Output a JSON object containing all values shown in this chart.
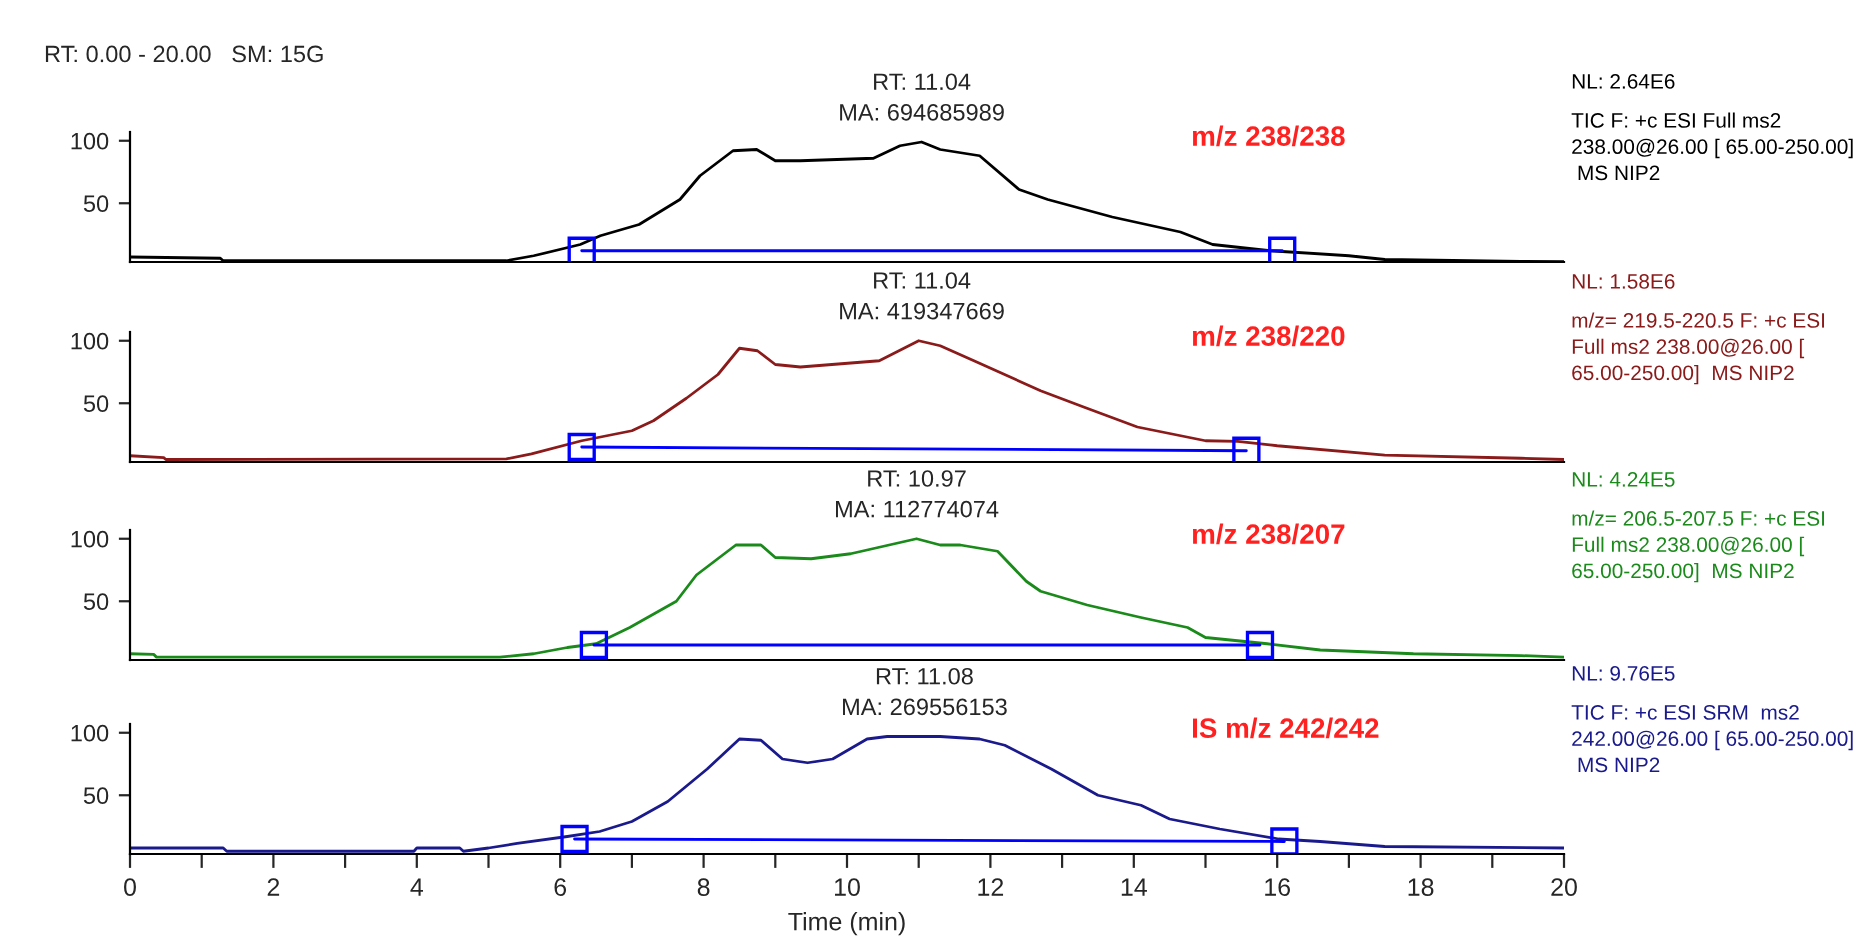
{
  "chart_data": [
    {
      "type": "line",
      "title": "m/z 238/238",
      "subtitle": "RT: 0.00 - 20.00   SM: 15G",
      "xlim": [
        0,
        20
      ],
      "ylim": [
        3,
        107
      ],
      "yticks": [
        50,
        100
      ],
      "tick_labels": "y",
      "grid": false,
      "annotations": [
        {
          "text": "RT: 11.04\nMA: 694685989",
          "x": 11.04,
          "y": 99
        },
        "NL: 2.64E6",
        "TIC F: +c ESI Full ms2\n238.00@26.00 [ 65.00-250.00]\n MS NIP2"
      ],
      "series": [
        {
          "color": "#000000",
          "x": [
            0,
            1.26,
            1.3,
            5.25,
            5.63,
            6.28,
            6.56,
            7.1,
            7.67,
            7.95,
            8.41,
            8.74,
            9.0,
            9.35,
            10.37,
            10.74,
            11.04,
            11.3,
            11.85,
            12.4,
            12.8,
            13.7,
            14.65,
            15.1,
            15.9,
            17.0,
            17.5,
            19.4,
            20
          ],
          "values": [
            7,
            6,
            4,
            4,
            8,
            17,
            24,
            33,
            53,
            72,
            92,
            93,
            84,
            84,
            86,
            96,
            99,
            93,
            88,
            61,
            53,
            39,
            27,
            17,
            12,
            8,
            5,
            3.5,
            3.2
          ]
        },
        {
          "color": "#0000ff",
          "marker": "square",
          "x": [
            6.3,
            16.07
          ],
          "values": [
            12,
            12
          ]
        }
      ]
    },
    {
      "type": "line",
      "title": "m/z 238/220",
      "xlim": [
        0,
        20
      ],
      "ylim": [
        3,
        107
      ],
      "yticks": [
        50,
        100
      ],
      "tick_labels": "y",
      "grid": false,
      "annotations": [
        {
          "text": "RT: 11.04\nMA: 419347669",
          "x": 11.04,
          "y": 100
        },
        "NL: 1.58E6",
        "m/z= 219.5-220.5 F: +c ESI\nFull ms2 238.00@26.00 [\n65.00-250.00]  MS NIP2"
      ],
      "series": [
        {
          "color": "#8b1a1a",
          "x": [
            0,
            0.47,
            0.5,
            5.25,
            5.6,
            6.3,
            7.0,
            7.3,
            7.76,
            8.2,
            8.5,
            8.75,
            9.0,
            9.35,
            10.45,
            11.0,
            11.3,
            11.77,
            12.7,
            13.3,
            14.05,
            15.0,
            15.45,
            16.0,
            17.5,
            19.4,
            20
          ],
          "values": [
            8,
            6.5,
            5,
            5.5,
            9.5,
            20,
            28,
            36,
            54,
            73,
            94,
            92,
            81,
            79,
            84,
            100,
            96,
            84,
            60,
            47,
            31,
            20,
            19.5,
            16,
            8.5,
            6,
            5
          ]
        },
        {
          "color": "#0000ff",
          "marker": "square",
          "x": [
            6.3,
            15.57
          ],
          "values": [
            15,
            12
          ]
        }
      ]
    },
    {
      "type": "line",
      "title": "m/z 238/207",
      "xlim": [
        0,
        20
      ],
      "ylim": [
        3,
        107
      ],
      "yticks": [
        50,
        100
      ],
      "tick_labels": "y",
      "grid": false,
      "annotations": [
        {
          "text": "RT: 10.97\nMA: 112774074",
          "x": 10.97,
          "y": 100
        },
        "NL: 4.24E5",
        "m/z= 206.5-207.5 F: +c ESI\nFull ms2 238.00@26.00 [\n65.00-250.00]  MS NIP2"
      ],
      "series": [
        {
          "color": "#1a8a1a",
          "x": [
            0,
            0.33,
            0.37,
            5.16,
            5.63,
            6.1,
            6.5,
            6.97,
            7.62,
            7.9,
            8.45,
            8.8,
            9.0,
            9.5,
            10.05,
            10.97,
            11.3,
            11.58,
            12.1,
            12.5,
            12.7,
            13.35,
            14.1,
            14.75,
            15.0,
            15.86,
            16.6,
            17.9,
            19.4,
            20
          ],
          "values": [
            8,
            7.5,
            5.3,
            5.3,
            8,
            13,
            16,
            29,
            50,
            71,
            95,
            95,
            85,
            84,
            88,
            100,
            95,
            95,
            90,
            66,
            58,
            47,
            37,
            29,
            21,
            16,
            11,
            8,
            6.5,
            5.3
          ]
        },
        {
          "color": "#0000ff",
          "marker": "square",
          "x": [
            6.47,
            15.76
          ],
          "values": [
            15,
            15
          ]
        }
      ]
    },
    {
      "type": "line",
      "title": "IS m/z 242/242",
      "xlabel": "Time (min)",
      "xlim": [
        0,
        20
      ],
      "ylim": [
        3,
        107
      ],
      "yticks": [
        50,
        100
      ],
      "xticks": [
        0,
        {
          "value": 1,
          "label": null
        },
        2,
        {
          "value": 3,
          "label": null
        },
        4,
        {
          "value": 5,
          "label": null
        },
        6,
        {
          "value": 7,
          "label": null
        },
        8,
        {
          "value": 9,
          "label": null
        },
        10,
        {
          "value": 11,
          "label": null
        },
        12,
        {
          "value": 13,
          "label": null
        },
        14,
        {
          "value": 15,
          "label": null
        },
        16,
        {
          "value": 17,
          "label": null
        },
        18,
        {
          "value": 19,
          "label": null
        },
        20
      ],
      "grid": false,
      "annotations": [
        {
          "text": "RT: 11.08\nMA: 269556153",
          "x": 11.08,
          "y": 97
        },
        "NL: 9.76E5",
        "TIC F: +c ESI SRM  ms2\n242.00@26.00 [ 65.00-250.00]\n MS NIP2"
      ],
      "series": [
        {
          "color": "#1a1a8c",
          "x": [
            0,
            1.3,
            1.35,
            3.96,
            4.0,
            4.6,
            4.65,
            5.0,
            5.4,
            6.1,
            6.55,
            7.0,
            7.5,
            8.05,
            8.5,
            8.8,
            9.1,
            9.45,
            9.8,
            10.28,
            10.56,
            11.3,
            11.85,
            12.2,
            12.85,
            13.5,
            14.1,
            14.5,
            15.2,
            16.02,
            16.6,
            17.5,
            20
          ],
          "values": [
            7.8,
            7.8,
            5.2,
            5.2,
            7.8,
            7.8,
            5.2,
            7.8,
            11.5,
            17,
            21,
            29,
            45,
            71,
            95,
            94,
            79,
            76,
            79,
            95,
            97,
            97,
            95,
            90,
            71,
            50,
            42,
            31,
            23,
            15,
            13,
            9,
            7.8
          ]
        },
        {
          "color": "#0000ff",
          "marker": "square",
          "x": [
            6.2,
            16.1
          ],
          "values": [
            15,
            13
          ]
        }
      ]
    }
  ]
}
